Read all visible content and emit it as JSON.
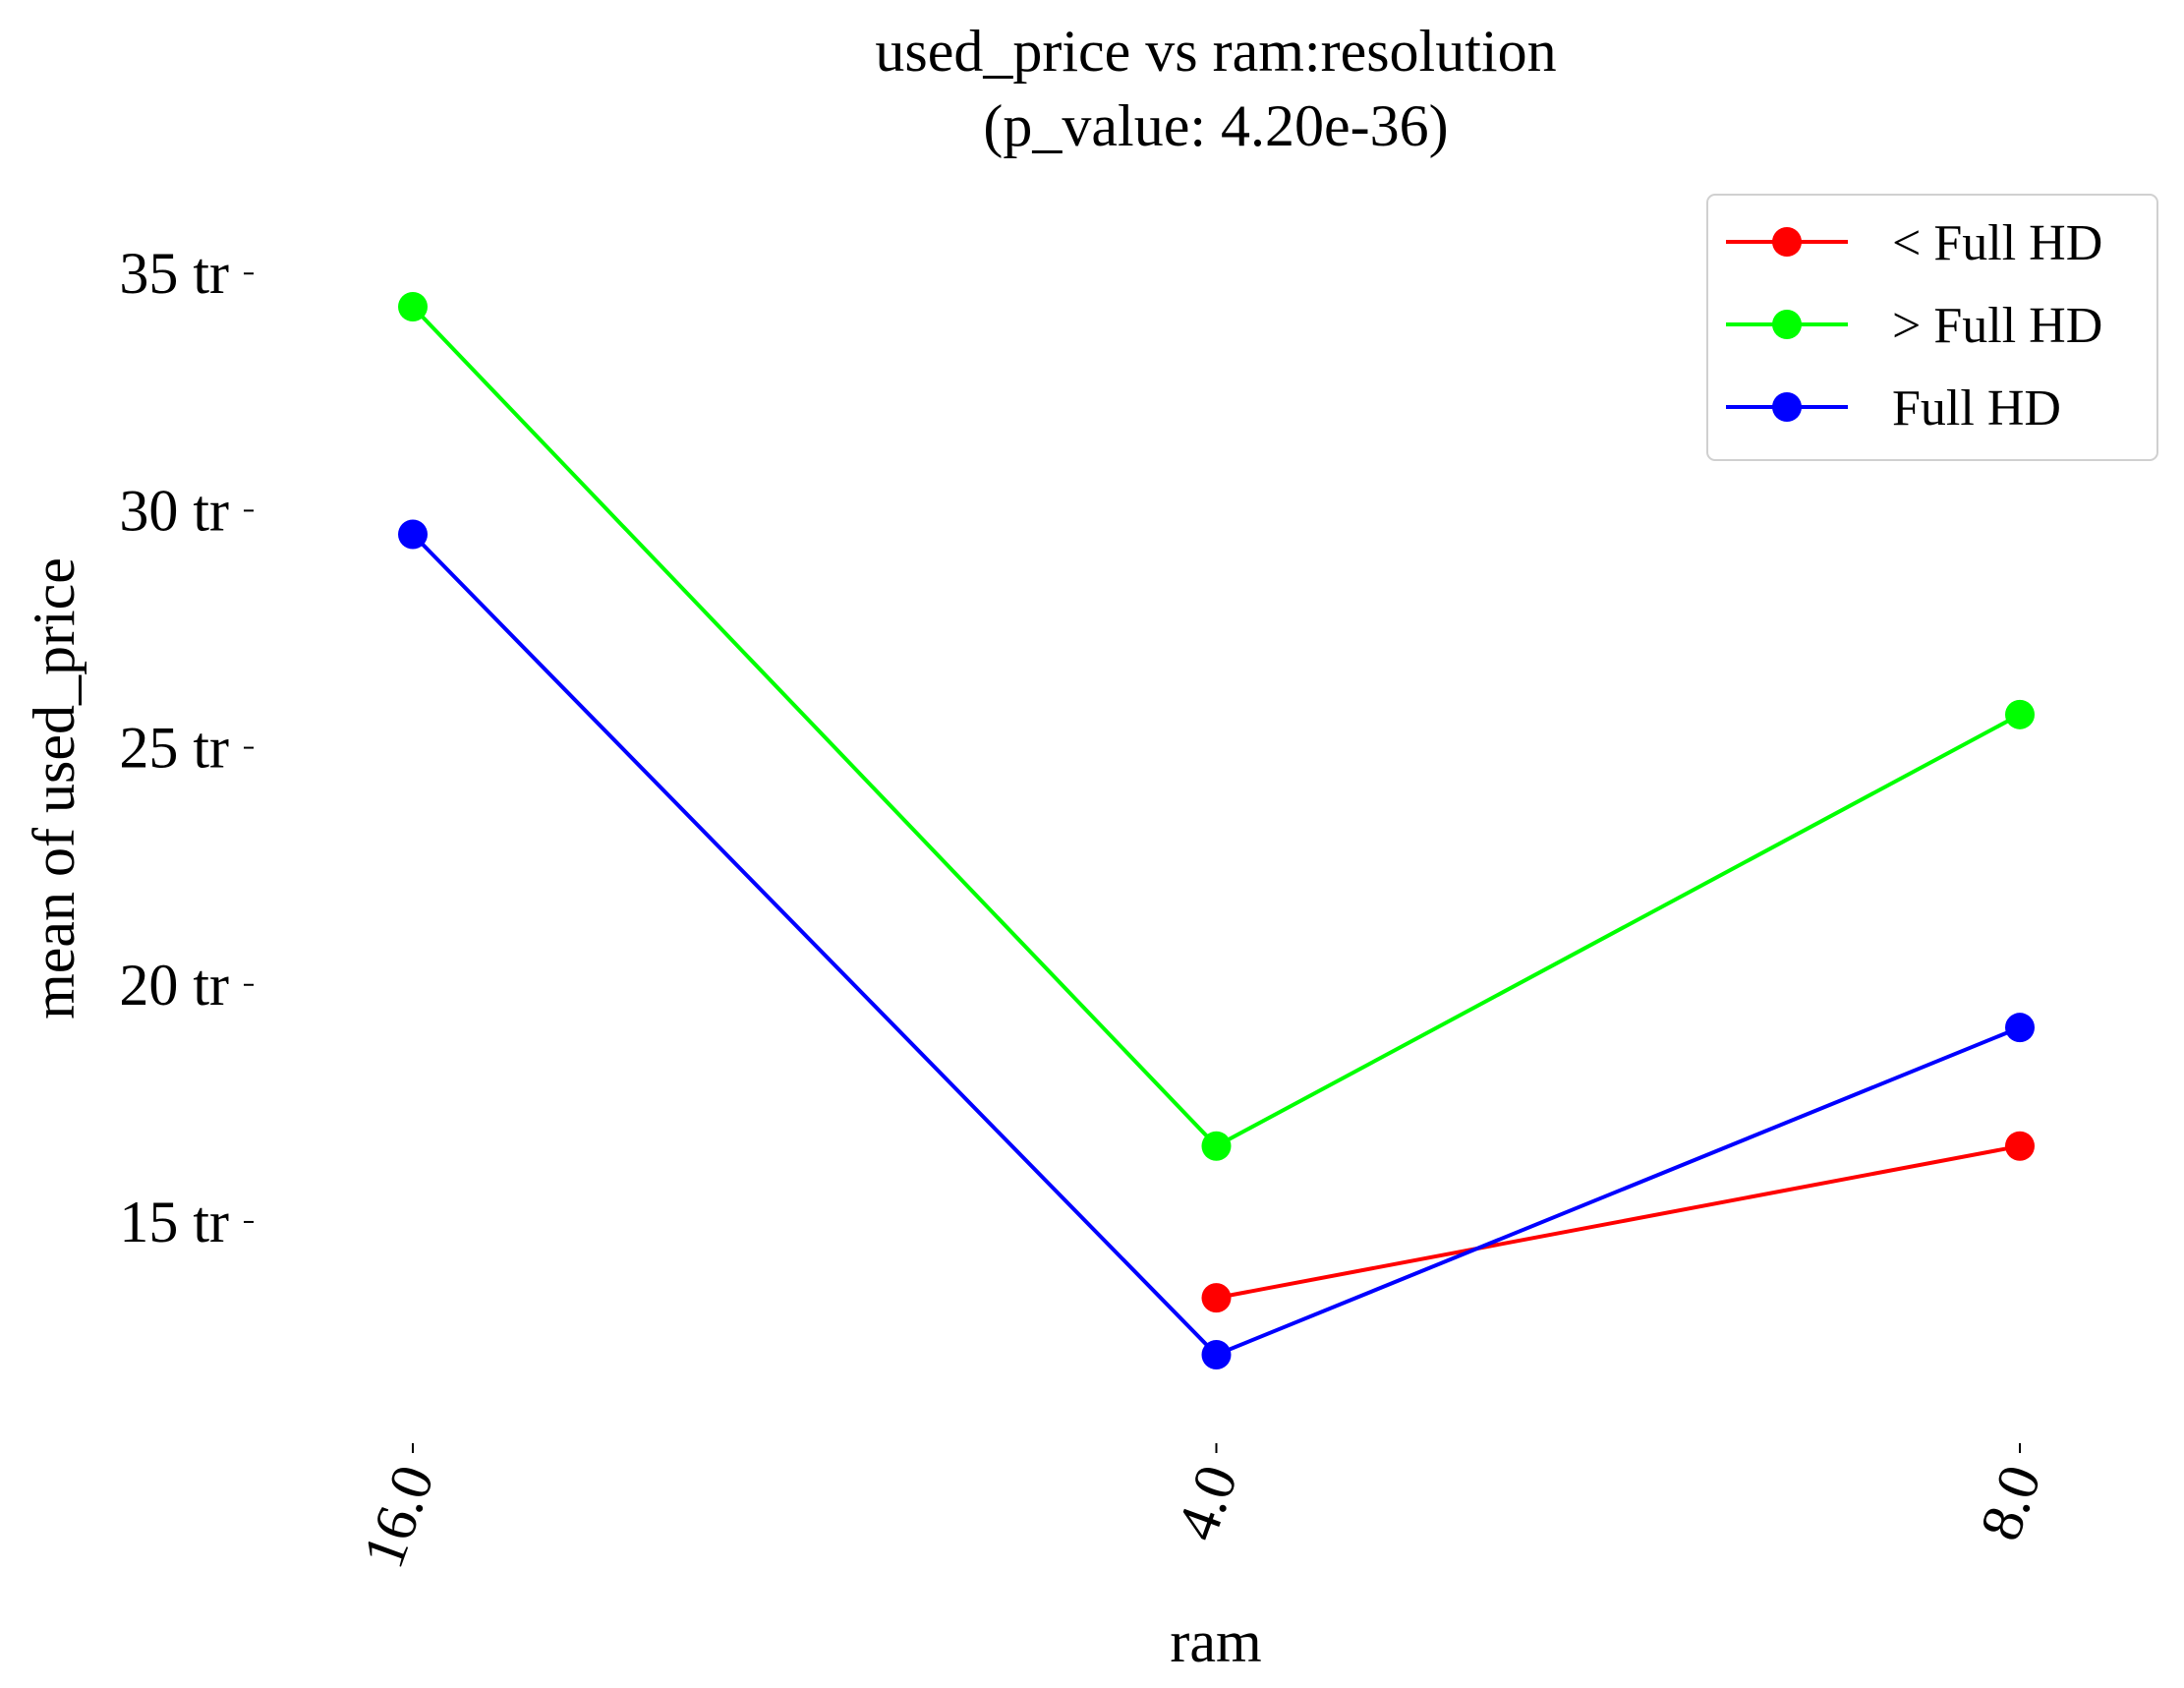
{
  "chart_data": {
    "type": "line",
    "title": "used_price vs ram:resolution",
    "subtitle": "(p_value: 4.20e-36)",
    "xlabel": "ram",
    "ylabel": "mean of used_price",
    "categories": [
      "16.0",
      "4.0",
      "8.0"
    ],
    "yticks": [
      15,
      20,
      25,
      30,
      35
    ],
    "ytick_labels": [
      "15 tr",
      "20 tr",
      "25 tr",
      "30 tr",
      "35 tr"
    ],
    "ylim": [
      10.5,
      36
    ],
    "grid": false,
    "legend_position": "top-right",
    "series": [
      {
        "name": "< Full HD",
        "color": "#ff0000",
        "values": [
          null,
          13.4,
          16.6
        ]
      },
      {
        "name": "> Full HD",
        "color": "#00ff00",
        "values": [
          34.3,
          16.6,
          25.7
        ]
      },
      {
        "name": "Full HD",
        "color": "#0000ff",
        "values": [
          29.5,
          12.2,
          19.1
        ]
      }
    ]
  }
}
